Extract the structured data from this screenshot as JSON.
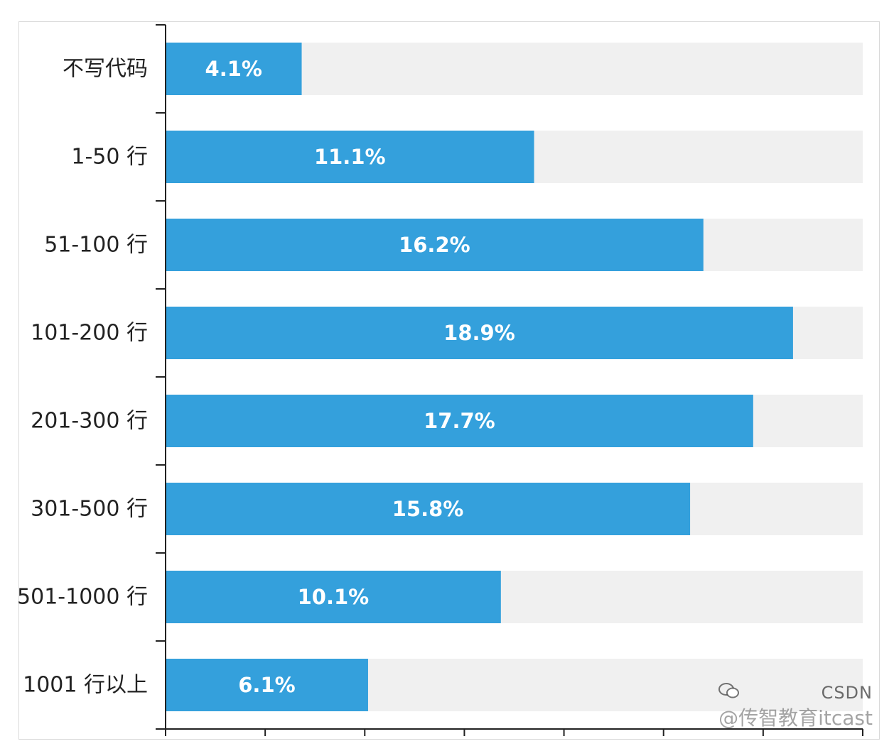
{
  "chart_data": {
    "type": "bar",
    "orientation": "horizontal",
    "categories": [
      "不写代码",
      "1-50 行",
      "51-100 行",
      "101-200 行",
      "201-300 行",
      "301-500 行",
      "501-1000 行",
      "1001 行以上"
    ],
    "values": [
      4.1,
      11.1,
      16.2,
      18.9,
      17.7,
      15.8,
      10.1,
      6.1
    ],
    "value_labels": [
      "4.1%",
      "11.1%",
      "16.2%",
      "18.9%",
      "17.7%",
      "15.8%",
      "10.1%",
      "6.1%"
    ],
    "xlim": [
      0,
      21
    ],
    "title": "",
    "xlabel": "",
    "ylabel": "",
    "grid": false,
    "bar_color": "#34a0dc",
    "track_color": "#f0f0f0"
  },
  "watermark": {
    "line1": "CSDN",
    "line2": "@传智教育itcast"
  }
}
